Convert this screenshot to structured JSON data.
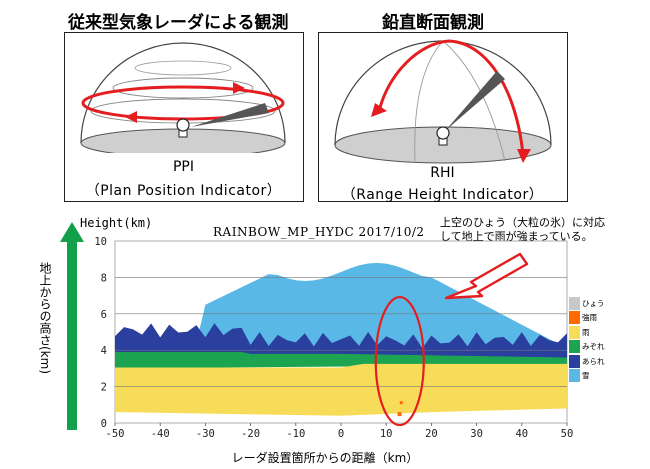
{
  "header": {
    "left_title": "従来型気象レーダによる観測",
    "right_title": "鉛直断面観測"
  },
  "ppi_panel": {
    "caption": "PPI",
    "subtitle": "（Plan Position Indicator）"
  },
  "rhi_panel": {
    "caption": "RHI",
    "subtitle": "（Range Height Indicator）"
  },
  "chart_data": {
    "type": "heatmap",
    "title": "RAINBOW_MP_HYDC 2017/10/2",
    "ylabel": "Height(km)",
    "xlabel": "レーダ設置箇所からの距離（km）",
    "side_label": "地上からの高さ(km)",
    "xlim": [
      -50,
      50
    ],
    "ylim": [
      0,
      10
    ],
    "x_ticks": [
      "-50",
      "-40",
      "-30",
      "-20",
      "-10",
      "0",
      "10",
      "20",
      "30",
      "40",
      "50"
    ],
    "y_ticks": [
      "0",
      "2",
      "4",
      "6",
      "8",
      "10"
    ],
    "legend": [
      {
        "label": "ひょう",
        "color": "#c8c8c8"
      },
      {
        "label": "強雨",
        "color": "#ff6a00"
      },
      {
        "label": "雨",
        "color": "#f7dc5a"
      },
      {
        "label": "みぞれ",
        "color": "#1da450"
      },
      {
        "label": "あられ",
        "color": "#2a3f9e"
      },
      {
        "label": "雪",
        "color": "#5ab8e6"
      }
    ],
    "annotation": [
      "上空のひょう（大粒の氷）に対応",
      "して地上で雨が強まっている。"
    ]
  },
  "colors": {
    "arrow_red": "#e41e20",
    "height_arrow_green": "#13a04a",
    "dome_floor": "#cfcfcf"
  }
}
